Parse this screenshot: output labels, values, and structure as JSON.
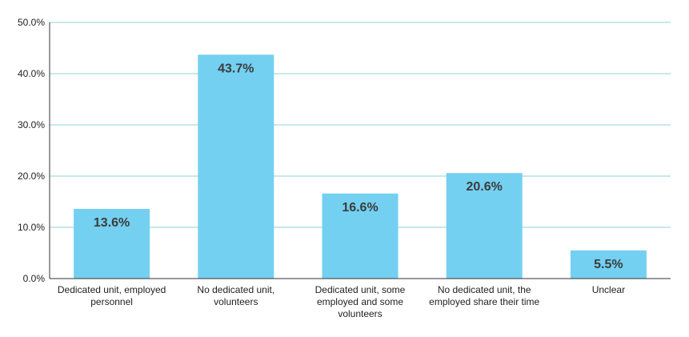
{
  "chart_data": {
    "type": "bar",
    "categories": [
      [
        "Dedicated unit,  employed",
        "personnel"
      ],
      [
        "No dedicated unit,",
        "volunteers"
      ],
      [
        "Dedicated unit, some",
        "employed and some",
        "volunteers"
      ],
      [
        "No dedicated unit, the",
        "employed share their time"
      ],
      [
        "Unclear"
      ]
    ],
    "values": [
      13.6,
      43.7,
      16.6,
      20.6,
      5.5
    ],
    "data_labels": [
      "13.6%",
      "43.7%",
      "16.6%",
      "20.6%",
      "5.5%"
    ],
    "ylim": [
      0,
      50
    ],
    "yticks": [
      0,
      10,
      20,
      30,
      40,
      50
    ],
    "ytick_labels": [
      "0.0%",
      "10.0%",
      "20.0%",
      "30.0%",
      "40.0%",
      "50.0%"
    ],
    "grid": true,
    "legend": "none"
  },
  "colors": {
    "bar": "#73d0f1",
    "grid": "#8fd3d3",
    "axis": "#333333"
  }
}
